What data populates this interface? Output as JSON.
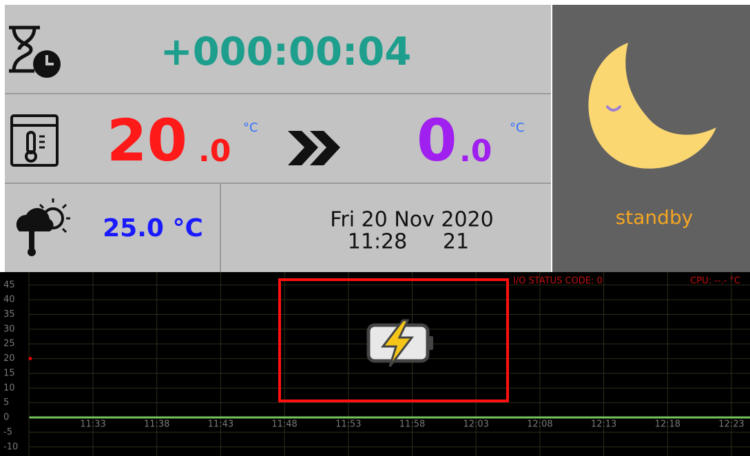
{
  "timer": {
    "text": "+000:00:04",
    "color": "#1e9e8c"
  },
  "temperature": {
    "current": {
      "integer": "20",
      "decimal": ".0",
      "unit": "°C",
      "color": "#ff1a1a"
    },
    "target": {
      "integer": "0",
      "decimal": ".0",
      "unit": "°C",
      "color": "#a020f0"
    }
  },
  "weather": {
    "text": "25.0 °C",
    "color": "#1a1aff"
  },
  "clock": {
    "date": "Fri 20 Nov 2020",
    "time": "11:28",
    "seconds": "21"
  },
  "mode": {
    "text": "standby",
    "color": "#f5a623"
  },
  "status": {
    "io": "I/O STATUS CODE: 0",
    "cpu": "CPU: --.- °C"
  },
  "chart_data": {
    "type": "line",
    "categories": [
      "11:33",
      "11:38",
      "11:43",
      "11:48",
      "11:53",
      "11:58",
      "12:03",
      "12:08",
      "12:13",
      "12:18",
      "12:23"
    ],
    "ylim": [
      -13.1,
      49.4
    ],
    "yticks": [
      45,
      40,
      35,
      30,
      25,
      20,
      15,
      10,
      5,
      0,
      -5,
      -10
    ],
    "grid": true,
    "zero_line_color": "#77c35a",
    "marker": {
      "value": 20,
      "color": "#e00000"
    }
  }
}
